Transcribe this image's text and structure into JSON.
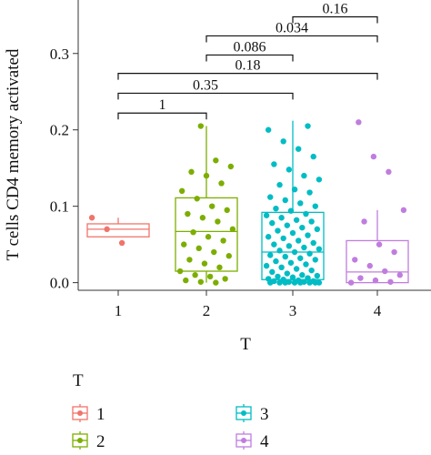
{
  "chart_data": {
    "type": "box",
    "xlabel": "T",
    "ylabel": "T cells CD4 memory activated",
    "categories": [
      "1",
      "2",
      "3",
      "4"
    ],
    "ylim": [
      -0.01,
      0.37
    ],
    "y_ticks": [
      0.0,
      0.1,
      0.2,
      0.3
    ],
    "y_tick_labels": [
      "0.0",
      "0.1",
      "0.2",
      "0.3"
    ],
    "grid": false,
    "legend_title": "T",
    "legend_position": "bottom",
    "legend_entries": [
      {
        "label": "1",
        "color": "#f0746b"
      },
      {
        "label": "2",
        "color": "#7cae00"
      },
      {
        "label": "3",
        "color": "#00bcc4"
      },
      {
        "label": "4",
        "color": "#c07ddf"
      }
    ],
    "groups": [
      {
        "name": "1",
        "color": "#f0746b",
        "min": 0.06,
        "q1": 0.06,
        "median": 0.07,
        "q3": 0.077,
        "max": 0.085,
        "points": [
          0.085,
          0.07,
          0.052
        ]
      },
      {
        "name": "2",
        "color": "#7cae00",
        "min": 0.0,
        "q1": 0.015,
        "median": 0.067,
        "q3": 0.111,
        "max": 0.205,
        "points": [
          0.205,
          0.16,
          0.152,
          0.145,
          0.14,
          0.13,
          0.12,
          0.11,
          0.1,
          0.095,
          0.09,
          0.085,
          0.08,
          0.07,
          0.066,
          0.06,
          0.055,
          0.05,
          0.045,
          0.04,
          0.035,
          0.03,
          0.025,
          0.02,
          0.015,
          0.01,
          0.008,
          0.005,
          0.003,
          0.001,
          0.0
        ]
      },
      {
        "name": "3",
        "color": "#00bcc4",
        "min": 0.0,
        "q1": 0.004,
        "median": 0.04,
        "q3": 0.092,
        "max": 0.212,
        "points": [
          0.205,
          0.2,
          0.185,
          0.175,
          0.165,
          0.155,
          0.148,
          0.14,
          0.135,
          0.128,
          0.122,
          0.118,
          0.112,
          0.108,
          0.104,
          0.1,
          0.097,
          0.094,
          0.09,
          0.088,
          0.085,
          0.082,
          0.08,
          0.078,
          0.075,
          0.072,
          0.07,
          0.068,
          0.065,
          0.062,
          0.06,
          0.058,
          0.055,
          0.052,
          0.05,
          0.048,
          0.046,
          0.044,
          0.042,
          0.04,
          0.038,
          0.036,
          0.034,
          0.032,
          0.03,
          0.028,
          0.026,
          0.024,
          0.022,
          0.02,
          0.018,
          0.016,
          0.014,
          0.012,
          0.01,
          0.009,
          0.008,
          0.007,
          0.006,
          0.005,
          0.004,
          0.003,
          0.002,
          0.002,
          0.001,
          0.001,
          0.0,
          0.0,
          0.0,
          0.0,
          0.0,
          0.0,
          0.0,
          0.0
        ]
      },
      {
        "name": "4",
        "color": "#c07ddf",
        "min": 0.0,
        "q1": 0.0,
        "median": 0.014,
        "q3": 0.055,
        "max": 0.095,
        "points": [
          0.21,
          0.165,
          0.145,
          0.095,
          0.08,
          0.05,
          0.04,
          0.03,
          0.022,
          0.015,
          0.01,
          0.006,
          0.003,
          0.001,
          0.0
        ]
      }
    ],
    "comparisons": [
      {
        "from": "1",
        "to": "2",
        "label": "1",
        "y": 0.222
      },
      {
        "from": "1",
        "to": "3",
        "label": "0.35",
        "y": 0.248
      },
      {
        "from": "1",
        "to": "4",
        "label": "0.18",
        "y": 0.274
      },
      {
        "from": "2",
        "to": "3",
        "label": "0.086",
        "y": 0.298
      },
      {
        "from": "2",
        "to": "4",
        "label": "0.034",
        "y": 0.323
      },
      {
        "from": "3",
        "to": "4",
        "label": "0.16",
        "y": 0.348
      }
    ]
  }
}
